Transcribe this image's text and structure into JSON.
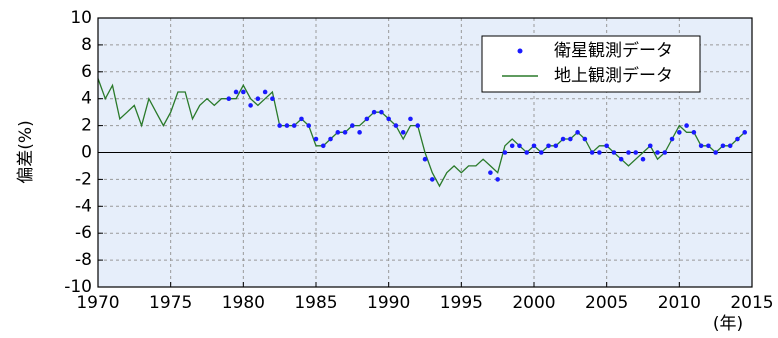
{
  "chart_data": {
    "type": "line",
    "ylabel": "偏差(%)",
    "xlabel": "(年)",
    "x": [
      1970,
      1970.5,
      1971,
      1971.5,
      1972,
      1972.5,
      1973,
      1973.5,
      1974,
      1974.5,
      1975,
      1975.5,
      1976,
      1976.5,
      1977,
      1977.5,
      1978,
      1978.5,
      1979,
      1979.5,
      1980,
      1980.5,
      1981,
      1981.5,
      1982,
      1982.5,
      1983,
      1983.5,
      1984,
      1984.5,
      1985,
      1985.5,
      1986,
      1986.5,
      1987,
      1987.5,
      1988,
      1988.5,
      1989,
      1989.5,
      1990,
      1990.5,
      1991,
      1991.5,
      1992,
      1992.5,
      1993,
      1993.5,
      1994,
      1994.5,
      1995,
      1995.5,
      1996,
      1996.5,
      1997,
      1997.5,
      1998,
      1998.5,
      1999,
      1999.5,
      2000,
      2000.5,
      2001,
      2001.5,
      2002,
      2002.5,
      2003,
      2003.5,
      2004,
      2004.5,
      2005,
      2005.5,
      2006,
      2006.5,
      2007,
      2007.5,
      2008,
      2008.5,
      2009,
      2009.5,
      2010,
      2010.5,
      2011,
      2011.5,
      2012,
      2012.5,
      2013,
      2013.5,
      2014,
      2014.5
    ],
    "series": [
      {
        "name": "衛星観測データ",
        "color": "#1a1aff",
        "style": "markers",
        "values": [
          null,
          null,
          null,
          null,
          null,
          null,
          null,
          null,
          null,
          null,
          null,
          null,
          null,
          null,
          null,
          null,
          null,
          null,
          4,
          4.5,
          4.5,
          3.5,
          4,
          4.5,
          4,
          2,
          2,
          2,
          2.5,
          2,
          1,
          0.5,
          1,
          1.5,
          1.5,
          2,
          1.5,
          2.5,
          3,
          3,
          2.5,
          2,
          1.5,
          2.5,
          2,
          -0.5,
          -2,
          null,
          null,
          null,
          null,
          null,
          null,
          null,
          -1.5,
          -2,
          0,
          0.5,
          0.5,
          0,
          0.5,
          0,
          0.5,
          0.5,
          1,
          1,
          1.5,
          1,
          0,
          0,
          0.5,
          0,
          -0.5,
          0,
          0,
          -0.5,
          0.5,
          0,
          0,
          1,
          1.5,
          2,
          1.5,
          0.5,
          0.5,
          0,
          0.5,
          0.5,
          1,
          1.5
        ]
      },
      {
        "name": "地上観測データ",
        "color": "#2a7a2a",
        "style": "line",
        "values": [
          5.5,
          4,
          5,
          2.5,
          3,
          3.5,
          2,
          4,
          3,
          2,
          3,
          4.5,
          4.5,
          2.5,
          3.5,
          4,
          3.5,
          4,
          4,
          4,
          5,
          4,
          3.5,
          4,
          4.5,
          2,
          2,
          2,
          2.5,
          2,
          0.5,
          0.5,
          1,
          1.5,
          1.5,
          2,
          2,
          2.5,
          3,
          3,
          2.5,
          2,
          1,
          2,
          2,
          0,
          -1.5,
          -2.5,
          -1.5,
          -1,
          -1.5,
          -1,
          -1,
          -0.5,
          -1,
          -1.5,
          0.5,
          1,
          0.5,
          0,
          0.5,
          0,
          0.5,
          0.5,
          1,
          1,
          1.5,
          1,
          0,
          0.5,
          0.5,
          0,
          -0.5,
          -1,
          -0.5,
          0,
          0.5,
          -0.5,
          0,
          1,
          2,
          1.5,
          1.5,
          0.5,
          0.5,
          0,
          0.5,
          0.5,
          1,
          1.5
        ]
      }
    ],
    "xlim": [
      1970,
      2015
    ],
    "xticks": [
      1970,
      1975,
      1980,
      1985,
      1990,
      1995,
      2000,
      2005,
      2010,
      2015
    ],
    "ylim": [
      -10,
      10
    ],
    "yticks": [
      -10,
      -8,
      -6,
      -4,
      -2,
      0,
      2,
      4,
      6,
      8,
      10
    ],
    "grid": true,
    "legend": "upper right"
  }
}
